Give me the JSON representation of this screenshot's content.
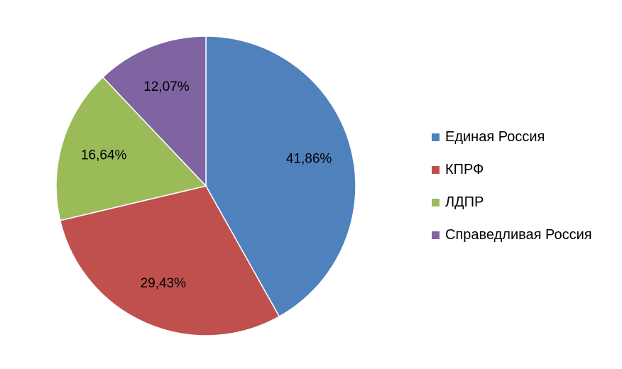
{
  "chart_data": {
    "type": "pie",
    "title": "",
    "legend_position": "right",
    "categories": [
      "Единая Россия",
      "КПРФ",
      "ЛДПР",
      "Справедливая Россия"
    ],
    "values": [
      41.86,
      29.43,
      16.64,
      12.07
    ],
    "data_labels": [
      "41,86%",
      "29,43%",
      "16,64%",
      "12,07%"
    ],
    "colors": [
      "#4F81BD",
      "#C0504D",
      "#9BBB59",
      "#8064A2"
    ],
    "start_angle": "12 o'clock",
    "direction": "clockwise"
  }
}
